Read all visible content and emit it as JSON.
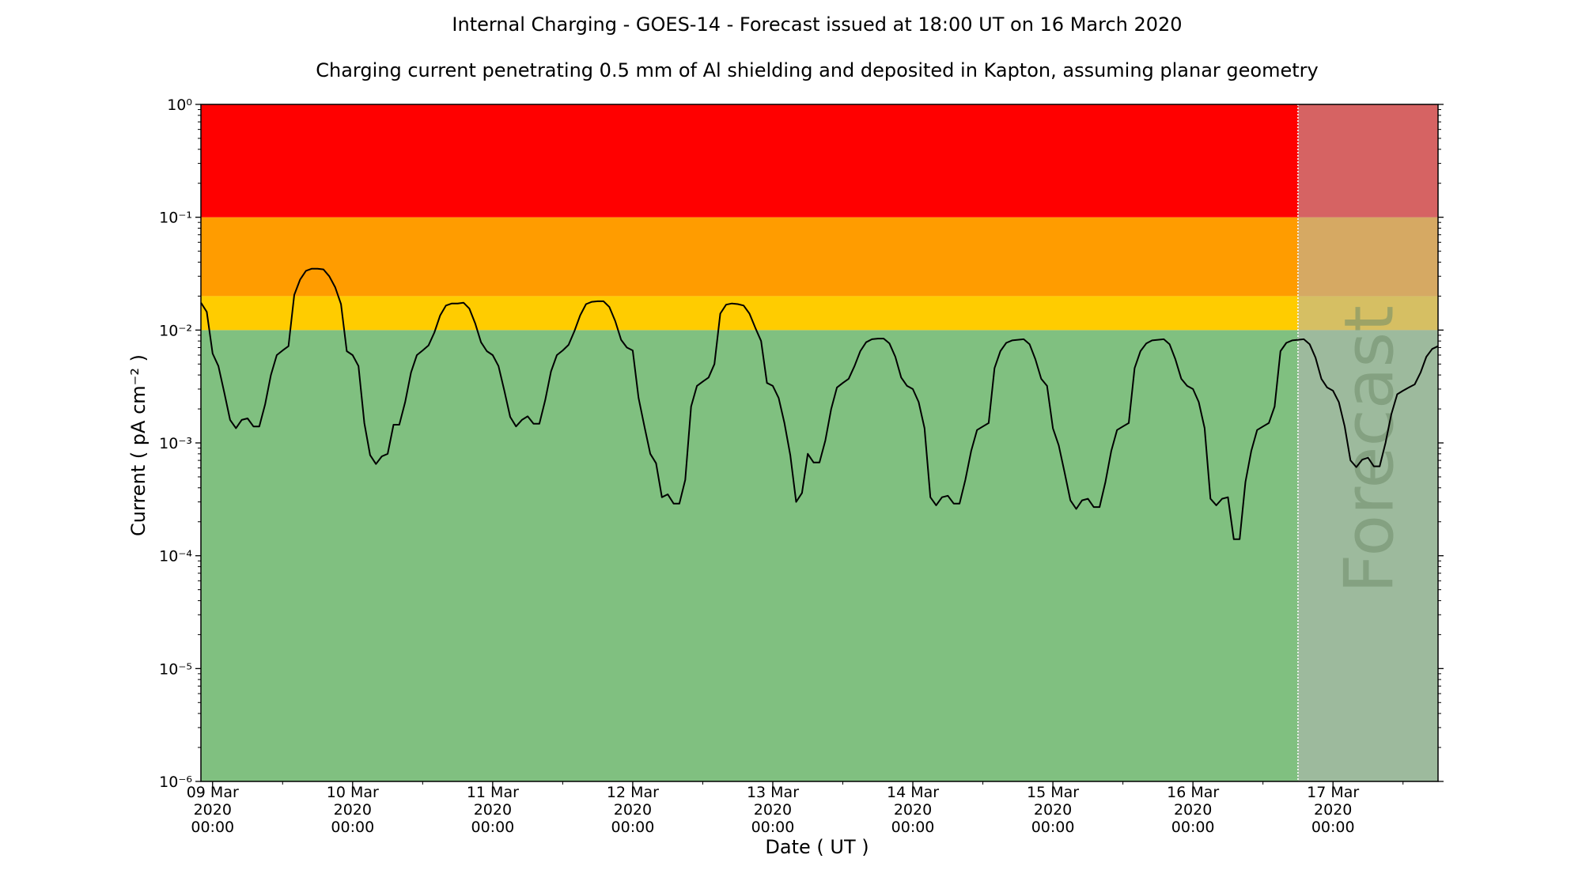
{
  "chart_data": {
    "type": "line",
    "title": "Internal Charging - GOES-14 - Forecast issued at 18:00 UT on 16 March 2020",
    "subtitle": "Charging current penetrating 0.5 mm of Al shielding and deposited in Kapton, assuming planar geometry",
    "xlabel": "Date ( UT )",
    "ylabel": "Current ( pA cm⁻² )",
    "yscale": "log",
    "ylim": [
      1e-06,
      1
    ],
    "xlim": [
      "2020-03-08 22:00",
      "2020-03-17 18:00"
    ],
    "y_ticks": [
      {
        "value": 1e-06,
        "label": "10⁻⁶"
      },
      {
        "value": 1e-05,
        "label": "10⁻⁵"
      },
      {
        "value": 0.0001,
        "label": "10⁻⁴"
      },
      {
        "value": 0.001,
        "label": "10⁻³"
      },
      {
        "value": 0.01,
        "label": "10⁻²"
      },
      {
        "value": 0.1,
        "label": "10⁻¹"
      },
      {
        "value": 1,
        "label": "10⁰"
      }
    ],
    "x_ticks": [
      {
        "value": "2020-03-09 00:00",
        "label": [
          "09 Mar",
          "2020",
          "00:00"
        ]
      },
      {
        "value": "2020-03-10 00:00",
        "label": [
          "10 Mar",
          "2020",
          "00:00"
        ]
      },
      {
        "value": "2020-03-11 00:00",
        "label": [
          "11 Mar",
          "2020",
          "00:00"
        ]
      },
      {
        "value": "2020-03-12 00:00",
        "label": [
          "12 Mar",
          "2020",
          "00:00"
        ]
      },
      {
        "value": "2020-03-13 00:00",
        "label": [
          "13 Mar",
          "2020",
          "00:00"
        ]
      },
      {
        "value": "2020-03-14 00:00",
        "label": [
          "14 Mar",
          "2020",
          "00:00"
        ]
      },
      {
        "value": "2020-03-15 00:00",
        "label": [
          "15 Mar",
          "2020",
          "00:00"
        ]
      },
      {
        "value": "2020-03-16 00:00",
        "label": [
          "16 Mar",
          "2020",
          "00:00"
        ]
      },
      {
        "value": "2020-03-17 00:00",
        "label": [
          "17 Mar",
          "2020",
          "00:00"
        ]
      }
    ],
    "x_minor_ticks": [
      "2020-03-09 12:00",
      "2020-03-10 12:00",
      "2020-03-11 12:00",
      "2020-03-12 12:00",
      "2020-03-13 12:00",
      "2020-03-14 12:00",
      "2020-03-15 12:00",
      "2020-03-16 12:00",
      "2020-03-17 12:00"
    ],
    "threshold_bands": [
      {
        "from": 1e-06,
        "to": 0.01,
        "color": "#80c080"
      },
      {
        "from": 0.01,
        "to": 0.02,
        "color": "#ffcc00"
      },
      {
        "from": 0.02,
        "to": 0.1,
        "color": "#ff9c00"
      },
      {
        "from": 0.1,
        "to": 1,
        "color": "#ff0000"
      }
    ],
    "forecast": {
      "start": "2020-03-16 18:00",
      "label": "Forecast",
      "overlay_color": "#b4b4b4",
      "line_color": "#ffffff"
    },
    "series": [
      {
        "color": "#000000",
        "points": [
          [
            "2020-03-08 22:00",
            0.0175
          ],
          [
            "2020-03-08 23:00",
            0.0145
          ],
          [
            "2020-03-09 00:00",
            0.0062
          ],
          [
            "2020-03-09 01:00",
            0.0048
          ],
          [
            "2020-03-09 02:00",
            0.0028
          ],
          [
            "2020-03-09 03:00",
            0.0016
          ],
          [
            "2020-03-09 04:00",
            0.00135
          ],
          [
            "2020-03-09 05:00",
            0.0016
          ],
          [
            "2020-03-09 06:00",
            0.00165
          ],
          [
            "2020-03-09 07:00",
            0.0014
          ],
          [
            "2020-03-09 08:00",
            0.0014
          ],
          [
            "2020-03-09 09:00",
            0.0022
          ],
          [
            "2020-03-09 10:00",
            0.004
          ],
          [
            "2020-03-09 11:00",
            0.006
          ],
          [
            "2020-03-09 12:00",
            0.0066
          ],
          [
            "2020-03-09 13:00",
            0.0072
          ],
          [
            "2020-03-09 14:00",
            0.0205
          ],
          [
            "2020-03-09 15:00",
            0.028
          ],
          [
            "2020-03-09 16:00",
            0.0335
          ],
          [
            "2020-03-09 17:00",
            0.035
          ],
          [
            "2020-03-09 18:00",
            0.035
          ],
          [
            "2020-03-09 19:00",
            0.0345
          ],
          [
            "2020-03-09 20:00",
            0.03
          ],
          [
            "2020-03-09 21:00",
            0.024
          ],
          [
            "2020-03-09 22:00",
            0.017
          ],
          [
            "2020-03-09 23:00",
            0.0065
          ],
          [
            "2020-03-10 00:00",
            0.006
          ],
          [
            "2020-03-10 01:00",
            0.0048
          ],
          [
            "2020-03-10 02:00",
            0.0015
          ],
          [
            "2020-03-10 03:00",
            0.00078
          ],
          [
            "2020-03-10 04:00",
            0.00065
          ],
          [
            "2020-03-10 05:00",
            0.00076
          ],
          [
            "2020-03-10 06:00",
            0.0008
          ],
          [
            "2020-03-10 07:00",
            0.00145
          ],
          [
            "2020-03-10 08:00",
            0.00145
          ],
          [
            "2020-03-10 09:00",
            0.0023
          ],
          [
            "2020-03-10 10:00",
            0.0042
          ],
          [
            "2020-03-10 11:00",
            0.006
          ],
          [
            "2020-03-10 12:00",
            0.0066
          ],
          [
            "2020-03-10 13:00",
            0.0073
          ],
          [
            "2020-03-10 14:00",
            0.0095
          ],
          [
            "2020-03-10 15:00",
            0.0135
          ],
          [
            "2020-03-10 16:00",
            0.0165
          ],
          [
            "2020-03-10 17:00",
            0.0172
          ],
          [
            "2020-03-10 18:00",
            0.0172
          ],
          [
            "2020-03-10 19:00",
            0.0175
          ],
          [
            "2020-03-10 20:00",
            0.0155
          ],
          [
            "2020-03-10 21:00",
            0.0115
          ],
          [
            "2020-03-10 22:00",
            0.0078
          ],
          [
            "2020-03-10 23:00",
            0.0065
          ],
          [
            "2020-03-11 00:00",
            0.006
          ],
          [
            "2020-03-11 01:00",
            0.0048
          ],
          [
            "2020-03-11 02:00",
            0.0029
          ],
          [
            "2020-03-11 03:00",
            0.0017
          ],
          [
            "2020-03-11 04:00",
            0.0014
          ],
          [
            "2020-03-11 05:00",
            0.0016
          ],
          [
            "2020-03-11 06:00",
            0.00172
          ],
          [
            "2020-03-11 07:00",
            0.00148
          ],
          [
            "2020-03-11 08:00",
            0.00148
          ],
          [
            "2020-03-11 09:00",
            0.0024
          ],
          [
            "2020-03-11 10:00",
            0.0043
          ],
          [
            "2020-03-11 11:00",
            0.006
          ],
          [
            "2020-03-11 12:00",
            0.0066
          ],
          [
            "2020-03-11 13:00",
            0.0074
          ],
          [
            "2020-03-11 14:00",
            0.0098
          ],
          [
            "2020-03-11 15:00",
            0.0135
          ],
          [
            "2020-03-11 16:00",
            0.017
          ],
          [
            "2020-03-11 17:00",
            0.0178
          ],
          [
            "2020-03-11 18:00",
            0.018
          ],
          [
            "2020-03-11 19:00",
            0.018
          ],
          [
            "2020-03-11 20:00",
            0.016
          ],
          [
            "2020-03-11 21:00",
            0.012
          ],
          [
            "2020-03-11 22:00",
            0.0082
          ],
          [
            "2020-03-11 23:00",
            0.007
          ],
          [
            "2020-03-12 00:00",
            0.0066
          ],
          [
            "2020-03-12 01:00",
            0.0025
          ],
          [
            "2020-03-12 02:00",
            0.0014
          ],
          [
            "2020-03-12 03:00",
            0.0008
          ],
          [
            "2020-03-12 04:00",
            0.00066
          ],
          [
            "2020-03-12 05:00",
            0.00033
          ],
          [
            "2020-03-12 06:00",
            0.00035
          ],
          [
            "2020-03-12 07:00",
            0.00029
          ],
          [
            "2020-03-12 08:00",
            0.00029
          ],
          [
            "2020-03-12 09:00",
            0.00047
          ],
          [
            "2020-03-12 10:00",
            0.0021
          ],
          [
            "2020-03-12 11:00",
            0.0032
          ],
          [
            "2020-03-12 12:00",
            0.0035
          ],
          [
            "2020-03-12 13:00",
            0.0038
          ],
          [
            "2020-03-12 14:00",
            0.005
          ],
          [
            "2020-03-12 15:00",
            0.014
          ],
          [
            "2020-03-12 16:00",
            0.0168
          ],
          [
            "2020-03-12 17:00",
            0.0172
          ],
          [
            "2020-03-12 18:00",
            0.017
          ],
          [
            "2020-03-12 19:00",
            0.0165
          ],
          [
            "2020-03-12 20:00",
            0.014
          ],
          [
            "2020-03-12 21:00",
            0.0105
          ],
          [
            "2020-03-12 22:00",
            0.008
          ],
          [
            "2020-03-12 23:00",
            0.0034
          ],
          [
            "2020-03-13 00:00",
            0.0032
          ],
          [
            "2020-03-13 01:00",
            0.0025
          ],
          [
            "2020-03-13 02:00",
            0.0015
          ],
          [
            "2020-03-13 03:00",
            0.00078
          ],
          [
            "2020-03-13 04:00",
            0.0003
          ],
          [
            "2020-03-13 05:00",
            0.00036
          ],
          [
            "2020-03-13 06:00",
            0.0008
          ],
          [
            "2020-03-13 07:00",
            0.00067
          ],
          [
            "2020-03-13 08:00",
            0.00067
          ],
          [
            "2020-03-13 09:00",
            0.00105
          ],
          [
            "2020-03-13 10:00",
            0.002
          ],
          [
            "2020-03-13 11:00",
            0.0031
          ],
          [
            "2020-03-13 12:00",
            0.0034
          ],
          [
            "2020-03-13 13:00",
            0.0037
          ],
          [
            "2020-03-13 14:00",
            0.0048
          ],
          [
            "2020-03-13 15:00",
            0.0065
          ],
          [
            "2020-03-13 16:00",
            0.0078
          ],
          [
            "2020-03-13 17:00",
            0.0083
          ],
          [
            "2020-03-13 18:00",
            0.0084
          ],
          [
            "2020-03-13 19:00",
            0.0084
          ],
          [
            "2020-03-13 20:00",
            0.0076
          ],
          [
            "2020-03-13 21:00",
            0.0058
          ],
          [
            "2020-03-13 22:00",
            0.0038
          ],
          [
            "2020-03-13 23:00",
            0.0032
          ],
          [
            "2020-03-14 00:00",
            0.003
          ],
          [
            "2020-03-14 01:00",
            0.0023
          ],
          [
            "2020-03-14 02:00",
            0.00135
          ],
          [
            "2020-03-14 03:00",
            0.00033
          ],
          [
            "2020-03-14 04:00",
            0.00028
          ],
          [
            "2020-03-14 05:00",
            0.00033
          ],
          [
            "2020-03-14 06:00",
            0.00034
          ],
          [
            "2020-03-14 07:00",
            0.00029
          ],
          [
            "2020-03-14 08:00",
            0.00029
          ],
          [
            "2020-03-14 09:00",
            0.00047
          ],
          [
            "2020-03-14 10:00",
            0.00085
          ],
          [
            "2020-03-14 11:00",
            0.0013
          ],
          [
            "2020-03-14 12:00",
            0.0014
          ],
          [
            "2020-03-14 13:00",
            0.0015
          ],
          [
            "2020-03-14 14:00",
            0.0046
          ],
          [
            "2020-03-14 15:00",
            0.0065
          ],
          [
            "2020-03-14 16:00",
            0.0077
          ],
          [
            "2020-03-14 17:00",
            0.0081
          ],
          [
            "2020-03-14 18:00",
            0.0082
          ],
          [
            "2020-03-14 19:00",
            0.0083
          ],
          [
            "2020-03-14 20:00",
            0.0075
          ],
          [
            "2020-03-14 21:00",
            0.0055
          ],
          [
            "2020-03-14 22:00",
            0.0037
          ],
          [
            "2020-03-14 23:00",
            0.0032
          ],
          [
            "2020-03-15 00:00",
            0.00135
          ],
          [
            "2020-03-15 01:00",
            0.00095
          ],
          [
            "2020-03-15 02:00",
            0.00055
          ],
          [
            "2020-03-15 03:00",
            0.00031
          ],
          [
            "2020-03-15 04:00",
            0.00026
          ],
          [
            "2020-03-15 05:00",
            0.00031
          ],
          [
            "2020-03-15 06:00",
            0.00032
          ],
          [
            "2020-03-15 07:00",
            0.00027
          ],
          [
            "2020-03-15 08:00",
            0.00027
          ],
          [
            "2020-03-15 09:00",
            0.00045
          ],
          [
            "2020-03-15 10:00",
            0.00085
          ],
          [
            "2020-03-15 11:00",
            0.0013
          ],
          [
            "2020-03-15 12:00",
            0.0014
          ],
          [
            "2020-03-15 13:00",
            0.0015
          ],
          [
            "2020-03-15 14:00",
            0.0046
          ],
          [
            "2020-03-15 15:00",
            0.0065
          ],
          [
            "2020-03-15 16:00",
            0.0076
          ],
          [
            "2020-03-15 17:00",
            0.0081
          ],
          [
            "2020-03-15 18:00",
            0.0082
          ],
          [
            "2020-03-15 19:00",
            0.0083
          ],
          [
            "2020-03-15 20:00",
            0.0075
          ],
          [
            "2020-03-15 21:00",
            0.0055
          ],
          [
            "2020-03-15 22:00",
            0.0037
          ],
          [
            "2020-03-15 23:00",
            0.0032
          ],
          [
            "2020-03-16 00:00",
            0.003
          ],
          [
            "2020-03-16 01:00",
            0.0023
          ],
          [
            "2020-03-16 02:00",
            0.00135
          ],
          [
            "2020-03-16 03:00",
            0.00032
          ],
          [
            "2020-03-16 04:00",
            0.00028
          ],
          [
            "2020-03-16 05:00",
            0.00032
          ],
          [
            "2020-03-16 06:00",
            0.00033
          ],
          [
            "2020-03-16 07:00",
            0.00014
          ],
          [
            "2020-03-16 08:00",
            0.00014
          ],
          [
            "2020-03-16 09:00",
            0.00045
          ],
          [
            "2020-03-16 10:00",
            0.00085
          ],
          [
            "2020-03-16 11:00",
            0.0013
          ],
          [
            "2020-03-16 12:00",
            0.0014
          ],
          [
            "2020-03-16 13:00",
            0.0015
          ],
          [
            "2020-03-16 14:00",
            0.0021
          ],
          [
            "2020-03-16 15:00",
            0.0065
          ],
          [
            "2020-03-16 16:00",
            0.0077
          ],
          [
            "2020-03-16 17:00",
            0.0081
          ],
          [
            "2020-03-16 18:00",
            0.0082
          ],
          [
            "2020-03-16 19:00",
            0.0083
          ],
          [
            "2020-03-16 20:00",
            0.0075
          ],
          [
            "2020-03-16 21:00",
            0.0057
          ],
          [
            "2020-03-16 22:00",
            0.0037
          ],
          [
            "2020-03-16 23:00",
            0.0031
          ],
          [
            "2020-03-17 00:00",
            0.0029
          ],
          [
            "2020-03-17 01:00",
            0.0023
          ],
          [
            "2020-03-17 02:00",
            0.0014
          ],
          [
            "2020-03-17 03:00",
            0.0007
          ],
          [
            "2020-03-17 04:00",
            0.00061
          ],
          [
            "2020-03-17 05:00",
            0.00071
          ],
          [
            "2020-03-17 06:00",
            0.00074
          ],
          [
            "2020-03-17 07:00",
            0.00062
          ],
          [
            "2020-03-17 08:00",
            0.00062
          ],
          [
            "2020-03-17 09:00",
            0.001
          ],
          [
            "2020-03-17 10:00",
            0.0018
          ],
          [
            "2020-03-17 11:00",
            0.0027
          ],
          [
            "2020-03-17 12:00",
            0.0029
          ],
          [
            "2020-03-17 13:00",
            0.0031
          ],
          [
            "2020-03-17 14:00",
            0.0033
          ],
          [
            "2020-03-17 15:00",
            0.0042
          ],
          [
            "2020-03-17 16:00",
            0.0058
          ],
          [
            "2020-03-17 17:00",
            0.0068
          ],
          [
            "2020-03-17 18:00",
            0.0072
          ]
        ]
      }
    ]
  }
}
